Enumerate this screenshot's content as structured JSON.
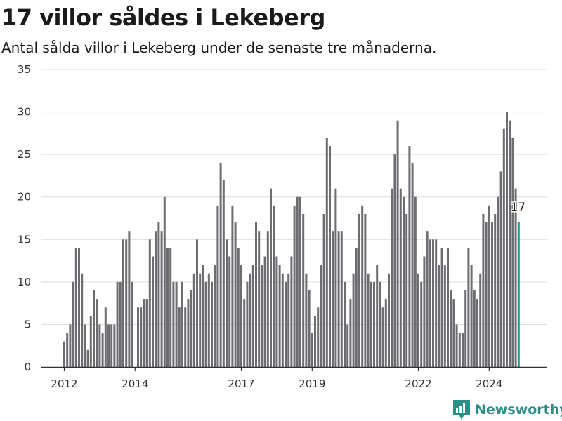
{
  "title": "17 villor såldes i Lekeberg",
  "subtitle": "Antal sålda villor i Lekeberg under de senaste tre månaderna.",
  "brand": "Newsworthy",
  "colors": {
    "bar": "#6d6c70",
    "highlight": "#1a9a8c",
    "grid": "#dcdcdc",
    "axis": "#333333",
    "brand": "#2a8f86"
  },
  "chart_data": {
    "type": "bar",
    "title": "17 villor såldes i Lekeberg",
    "xlabel": "",
    "ylabel": "",
    "ylim": [
      0,
      35
    ],
    "yticks": [
      0,
      5,
      10,
      15,
      20,
      25,
      30,
      35
    ],
    "xtick_labels": [
      "2012",
      "2014",
      "2017",
      "2019",
      "2022",
      "2024"
    ],
    "x_start": "2012-01",
    "frequency": "monthly",
    "grid": true,
    "highlight_label": "17",
    "values": [
      3,
      4,
      5,
      10,
      14,
      14,
      11,
      5,
      2,
      6,
      9,
      8,
      5,
      4,
      7,
      5,
      5,
      5,
      10,
      10,
      15,
      15,
      16,
      10,
      null,
      7,
      7,
      8,
      8,
      15,
      13,
      16,
      17,
      16,
      20,
      14,
      14,
      10,
      10,
      7,
      10,
      7,
      8,
      9,
      11,
      15,
      11,
      12,
      10,
      11,
      10,
      12,
      19,
      24,
      22,
      15,
      13,
      19,
      17,
      14,
      12,
      8,
      10,
      11,
      12,
      17,
      16,
      12,
      13,
      16,
      21,
      19,
      13,
      12,
      11,
      10,
      11,
      13,
      19,
      20,
      20,
      18,
      11,
      9,
      4,
      6,
      7,
      12,
      18,
      27,
      26,
      16,
      21,
      16,
      16,
      10,
      5,
      8,
      11,
      14,
      18,
      19,
      18,
      11,
      10,
      10,
      12,
      10,
      7,
      8,
      11,
      21,
      25,
      29,
      21,
      20,
      18,
      26,
      24,
      20,
      11,
      10,
      13,
      16,
      15,
      15,
      15,
      12,
      14,
      12,
      14,
      9,
      8,
      5,
      4,
      4,
      9,
      14,
      12,
      9,
      8,
      11,
      18,
      17,
      19,
      17,
      18,
      20,
      23,
      28,
      30,
      29,
      27,
      21,
      17
    ]
  }
}
